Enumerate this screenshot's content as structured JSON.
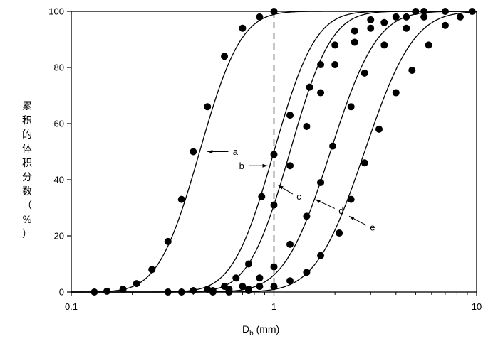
{
  "chart_data": {
    "type": "scatter",
    "title": "",
    "ylabel_chars": [
      "累",
      "积",
      "的",
      "体",
      "积",
      "分",
      "数",
      "（",
      "%",
      "）"
    ],
    "xlabel_main": "D",
    "xlabel_sub": "b",
    "xlabel_unit": " (mm)",
    "x_scale": "log",
    "xlim": [
      0.1,
      10
    ],
    "ylim": [
      0,
      100
    ],
    "x_ticks": [
      {
        "value": 0.1,
        "label": "0.1"
      },
      {
        "value": 1,
        "label": "1"
      },
      {
        "value": 10,
        "label": "10"
      }
    ],
    "y_ticks": [
      {
        "value": 0,
        "label": "0"
      },
      {
        "value": 20,
        "label": "20"
      },
      {
        "value": 40,
        "label": "40"
      },
      {
        "value": 60,
        "label": "60"
      },
      {
        "value": 80,
        "label": "80"
      },
      {
        "value": 100,
        "label": "100"
      }
    ],
    "reference_line": {
      "x": 1,
      "style": "dashed"
    },
    "grid": false,
    "series": [
      {
        "name": "a",
        "fit_d50": 0.43,
        "fit_sigma": 0.16,
        "points": [
          [
            0.13,
            0
          ],
          [
            0.15,
            0.3
          ],
          [
            0.18,
            1
          ],
          [
            0.21,
            3
          ],
          [
            0.25,
            8
          ],
          [
            0.3,
            18
          ],
          [
            0.35,
            33
          ],
          [
            0.4,
            50
          ],
          [
            0.47,
            66
          ],
          [
            0.57,
            84
          ],
          [
            0.7,
            94
          ],
          [
            0.85,
            98
          ],
          [
            1.0,
            100
          ]
        ]
      },
      {
        "name": "b",
        "fit_d50": 1.0,
        "fit_sigma": 0.16,
        "points": [
          [
            0.3,
            0
          ],
          [
            0.4,
            0.5
          ],
          [
            0.47,
            1
          ],
          [
            0.57,
            2
          ],
          [
            0.65,
            5
          ],
          [
            0.75,
            10
          ],
          [
            0.87,
            34
          ],
          [
            1.0,
            49
          ],
          [
            1.2,
            63
          ],
          [
            1.5,
            73
          ],
          [
            1.7,
            81
          ],
          [
            2.0,
            88
          ],
          [
            2.5,
            93
          ],
          [
            3.0,
            97
          ],
          [
            4.0,
            98
          ],
          [
            5.0,
            100
          ]
        ]
      },
      {
        "name": "c",
        "fit_d50": 1.2,
        "fit_sigma": 0.16,
        "points": [
          [
            0.35,
            0
          ],
          [
            0.5,
            0.5
          ],
          [
            0.6,
            1
          ],
          [
            0.7,
            2
          ],
          [
            0.85,
            5
          ],
          [
            1.0,
            31
          ],
          [
            1.2,
            45
          ],
          [
            1.45,
            59
          ],
          [
            1.7,
            71
          ],
          [
            2.0,
            81
          ],
          [
            2.5,
            89
          ],
          [
            3.0,
            94
          ],
          [
            3.5,
            96
          ],
          [
            4.5,
            98
          ],
          [
            5.5,
            100
          ]
        ]
      },
      {
        "name": "d",
        "fit_d50": 1.9,
        "fit_sigma": 0.18,
        "points": [
          [
            0.5,
            0
          ],
          [
            0.6,
            0.5
          ],
          [
            0.75,
            1
          ],
          [
            0.85,
            2
          ],
          [
            1.0,
            9
          ],
          [
            1.2,
            17
          ],
          [
            1.45,
            27
          ],
          [
            1.7,
            39
          ],
          [
            1.95,
            52
          ],
          [
            2.4,
            66
          ],
          [
            2.8,
            78
          ],
          [
            3.5,
            88
          ],
          [
            4.5,
            94
          ],
          [
            5.5,
            98
          ],
          [
            7.0,
            100
          ]
        ]
      },
      {
        "name": "e",
        "fit_d50": 2.8,
        "fit_sigma": 0.19,
        "points": [
          [
            0.6,
            0
          ],
          [
            0.75,
            0.5
          ],
          [
            1.0,
            2
          ],
          [
            1.2,
            4
          ],
          [
            1.45,
            7
          ],
          [
            1.7,
            13
          ],
          [
            2.1,
            21
          ],
          [
            2.4,
            33
          ],
          [
            2.8,
            46
          ],
          [
            3.3,
            58
          ],
          [
            4.0,
            71
          ],
          [
            4.8,
            79
          ],
          [
            5.8,
            88
          ],
          [
            7.0,
            95
          ],
          [
            8.3,
            98
          ],
          [
            9.5,
            100
          ]
        ]
      }
    ],
    "annotations": [
      {
        "text": "a",
        "series": "a",
        "x_point": 0.47,
        "y_point": 50,
        "x_label": 0.63,
        "y_label": 50
      },
      {
        "text": "b",
        "series": "b",
        "x_point": 0.93,
        "y_point": 45,
        "x_label": 0.71,
        "y_label": 45
      },
      {
        "text": "c",
        "series": "c",
        "x_point": 1.05,
        "y_point": 38,
        "x_label": 1.3,
        "y_label": 34
      },
      {
        "text": "d",
        "series": "d",
        "x_point": 1.6,
        "y_point": 33,
        "x_label": 2.1,
        "y_label": 29
      },
      {
        "text": "e",
        "series": "e",
        "x_point": 2.35,
        "y_point": 27,
        "x_label": 3.0,
        "y_label": 23
      }
    ]
  }
}
